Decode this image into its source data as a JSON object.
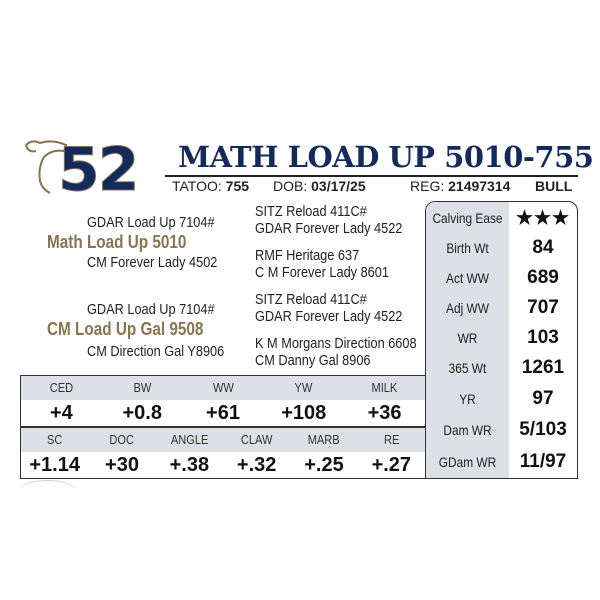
{
  "lot_number": "52",
  "animal_name": "MATH LOAD UP 5010-755",
  "info": {
    "tattoo_label": "TATOO:",
    "tattoo": "755",
    "dob_label": "DOB:",
    "dob": "03/17/25",
    "reg_label": "REG:",
    "reg": "21497314",
    "sex": "BULL"
  },
  "pedigree": {
    "sire": "Math Load Up 5010",
    "sire_sire": "GDAR Load Up 7104#",
    "sire_dam": "CM Forever Lady 4502",
    "sss": "SITZ Reload 411C#",
    "ssd": "GDAR Forever Lady 4522",
    "sds": "RMF Heritage 637",
    "sdd": "C M Forever Lady 8601",
    "dam": "CM Load Up Gal 9508",
    "dam_sire": "GDAR Load Up 7104#",
    "dam_dam": "CM Direction Gal Y8906",
    "dss": "SITZ Reload 411C#",
    "dsd": "GDAR Forever Lady 4522",
    "dds": "K M Morgans Direction 6608",
    "ddd": "CM Danny Gal 8906"
  },
  "stats": [
    {
      "label": "Calving Ease",
      "value": "★★★",
      "stars": 3
    },
    {
      "label": "Birth Wt",
      "value": "84"
    },
    {
      "label": "Act WW",
      "value": "689"
    },
    {
      "label": "Adj WW",
      "value": "707"
    },
    {
      "label": "WR",
      "value": "103"
    },
    {
      "label": "365 Wt",
      "value": "1261"
    },
    {
      "label": "YR",
      "value": "97"
    },
    {
      "label": "Dam WR",
      "value": "5/103"
    },
    {
      "label": "GDam WR",
      "value": "11/97"
    }
  ],
  "epd_row1": {
    "headers": [
      "CED",
      "BW",
      "WW",
      "YW",
      "MILK"
    ],
    "values": [
      "+4",
      "+0.8",
      "+61",
      "+108",
      "+36"
    ]
  },
  "epd_row2": {
    "headers": [
      "SC",
      "DOC",
      "ANGLE",
      "CLAW",
      "MARB",
      "RE"
    ],
    "values": [
      "+1.14",
      "+30",
      "+.38",
      "+.32",
      "+.25",
      "+.27"
    ]
  },
  "colors": {
    "navy": "#142a5c",
    "gold": "#8a7350",
    "panel": "#dde0e6"
  }
}
